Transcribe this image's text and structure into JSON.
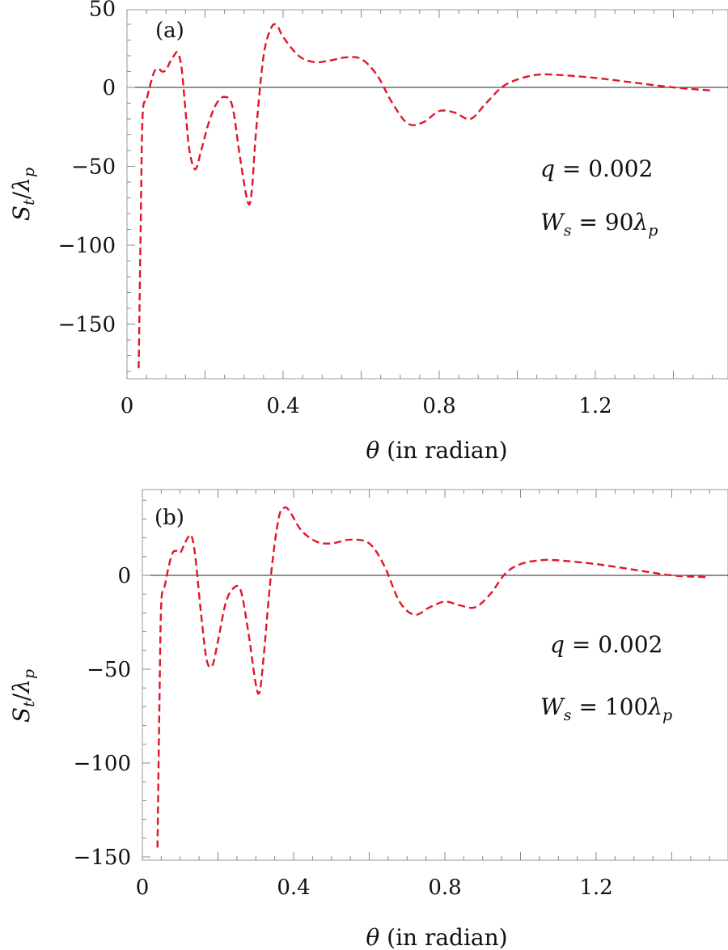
{
  "chart_data": [
    {
      "type": "line",
      "panel_label": "(a)",
      "xlabel": {
        "symbol": "θ",
        "text": " (in radian)"
      },
      "ylabel": {
        "S": "S",
        "t": "t",
        "slash": "/",
        "lambda": "λ",
        "p": "p"
      },
      "xlim": [
        0,
        1.55
      ],
      "ylim": [
        -185,
        52
      ],
      "x_ticks": [
        0,
        0.4,
        0.8,
        1.2
      ],
      "x_tick_labels": [
        "0",
        "0.4",
        "0.8",
        "1.2"
      ],
      "y_ticks": [
        50,
        0,
        -50,
        -100,
        -150
      ],
      "y_tick_labels": [
        "50",
        "0",
        "−50",
        "−100",
        "−150"
      ],
      "annotations": {
        "q": {
          "var": "q",
          "eq": " = 0.002"
        },
        "Ws": {
          "W": "W",
          "s": "s",
          "eq": " = 90",
          "lambda": "λ",
          "p": "p"
        }
      },
      "line_color": "#e0162b",
      "series": [
        {
          "values": [
            [
              0.03,
              -178
            ],
            [
              0.035,
              -90
            ],
            [
              0.04,
              -18
            ],
            [
              0.05,
              -8
            ],
            [
              0.06,
              2
            ],
            [
              0.07,
              10
            ],
            [
              0.08,
              12
            ],
            [
              0.09,
              10
            ],
            [
              0.1,
              11
            ],
            [
              0.11,
              16
            ],
            [
              0.12,
              20
            ],
            [
              0.13,
              22
            ],
            [
              0.14,
              12
            ],
            [
              0.15,
              -15
            ],
            [
              0.16,
              -40
            ],
            [
              0.175,
              -52
            ],
            [
              0.19,
              -40
            ],
            [
              0.21,
              -22
            ],
            [
              0.23,
              -10
            ],
            [
              0.25,
              -6
            ],
            [
              0.27,
              -12
            ],
            [
              0.29,
              -45
            ],
            [
              0.31,
              -73
            ],
            [
              0.32,
              -65
            ],
            [
              0.33,
              -30
            ],
            [
              0.35,
              20
            ],
            [
              0.37,
              38
            ],
            [
              0.385,
              39
            ],
            [
              0.4,
              32
            ],
            [
              0.44,
              20
            ],
            [
              0.48,
              16
            ],
            [
              0.52,
              17
            ],
            [
              0.56,
              19
            ],
            [
              0.6,
              18
            ],
            [
              0.64,
              8
            ],
            [
              0.68,
              -10
            ],
            [
              0.72,
              -23
            ],
            [
              0.76,
              -22
            ],
            [
              0.8,
              -15
            ],
            [
              0.84,
              -16
            ],
            [
              0.88,
              -20
            ],
            [
              0.92,
              -10
            ],
            [
              0.96,
              0
            ],
            [
              1.0,
              5
            ],
            [
              1.05,
              8
            ],
            [
              1.1,
              8
            ],
            [
              1.2,
              6
            ],
            [
              1.3,
              3
            ],
            [
              1.4,
              0
            ],
            [
              1.5,
              -2
            ]
          ]
        }
      ]
    },
    {
      "type": "line",
      "panel_label": "(b)",
      "xlabel": {
        "symbol": "θ",
        "text": " (in radian)"
      },
      "ylabel": {
        "S": "S",
        "t": "t",
        "slash": "/",
        "lambda": "λ",
        "p": "p"
      },
      "xlim": [
        0,
        1.55
      ],
      "ylim": [
        -152,
        40
      ],
      "x_ticks": [
        0,
        0.4,
        0.8,
        1.2
      ],
      "x_tick_labels": [
        "0",
        "0.4",
        "0.8",
        "1.2"
      ],
      "y_ticks": [
        0,
        -50,
        -100,
        -150
      ],
      "y_tick_labels": [
        "0",
        "−50",
        "−100",
        "−150"
      ],
      "annotations": {
        "q": {
          "var": "q",
          "eq": " = 0.002"
        },
        "Ws": {
          "W": "W",
          "s": "s",
          "eq": " = 100",
          "lambda": "λ",
          "p": "p"
        }
      },
      "line_color": "#e0162b",
      "series": [
        {
          "values": [
            [
              0.04,
              -145
            ],
            [
              0.045,
              -70
            ],
            [
              0.05,
              -15
            ],
            [
              0.06,
              -5
            ],
            [
              0.07,
              5
            ],
            [
              0.08,
              12
            ],
            [
              0.09,
              13
            ],
            [
              0.1,
              12
            ],
            [
              0.11,
              16
            ],
            [
              0.12,
              20
            ],
            [
              0.13,
              21
            ],
            [
              0.14,
              10
            ],
            [
              0.155,
              -20
            ],
            [
              0.17,
              -45
            ],
            [
              0.185,
              -48
            ],
            [
              0.2,
              -35
            ],
            [
              0.22,
              -15
            ],
            [
              0.24,
              -7
            ],
            [
              0.26,
              -8
            ],
            [
              0.28,
              -30
            ],
            [
              0.3,
              -58
            ],
            [
              0.31,
              -62
            ],
            [
              0.32,
              -45
            ],
            [
              0.34,
              0
            ],
            [
              0.36,
              30
            ],
            [
              0.375,
              36
            ],
            [
              0.39,
              34
            ],
            [
              0.42,
              24
            ],
            [
              0.46,
              18
            ],
            [
              0.5,
              17
            ],
            [
              0.55,
              19
            ],
            [
              0.6,
              17
            ],
            [
              0.64,
              5
            ],
            [
              0.68,
              -14
            ],
            [
              0.72,
              -21
            ],
            [
              0.76,
              -17
            ],
            [
              0.8,
              -14
            ],
            [
              0.84,
              -16
            ],
            [
              0.88,
              -17
            ],
            [
              0.92,
              -10
            ],
            [
              0.96,
              1
            ],
            [
              1.0,
              6
            ],
            [
              1.05,
              8
            ],
            [
              1.1,
              8
            ],
            [
              1.2,
              6
            ],
            [
              1.3,
              3
            ],
            [
              1.4,
              0
            ],
            [
              1.5,
              -1
            ]
          ]
        }
      ]
    }
  ]
}
